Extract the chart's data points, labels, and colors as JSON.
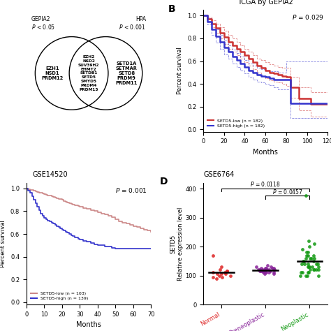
{
  "panel_A": {
    "left_label": "GEPIA2\nP < 0.05",
    "right_label": "HPA\nP < 0.001",
    "left_only": [
      "EZH1",
      "NSD1",
      "PRDM12"
    ],
    "intersection": [
      "EZH2",
      "NSD2",
      "SUV39H2",
      "EHMT2",
      "SETDB1",
      "SETD5",
      "SMYD5",
      "PRDM4",
      "PRDM15"
    ],
    "right_only": [
      "SETD1A",
      "SETMAR",
      "SETD8",
      "PRDM9",
      "PRDM11"
    ]
  },
  "panel_B": {
    "title": "TCGA by GEPIA2",
    "pvalue": "P = 0.029",
    "xlabel": "Months",
    "ylabel": "Percent survival",
    "xlim": [
      0,
      120
    ],
    "ylim": [
      -0.02,
      1.05
    ],
    "xticks": [
      0,
      20,
      40,
      60,
      80,
      100,
      120
    ],
    "yticks": [
      0.0,
      0.2,
      0.4,
      0.6,
      0.8,
      1.0
    ],
    "low_label": "SETD5-low (n = 182)",
    "high_label": "SETD5-high (n = 182)",
    "low_color": "#cc3333",
    "high_color": "#3333cc",
    "low_x": [
      0,
      4,
      8,
      12,
      16,
      20,
      24,
      28,
      32,
      36,
      40,
      44,
      48,
      52,
      56,
      60,
      64,
      68,
      72,
      76,
      80,
      84,
      88,
      92,
      96,
      100,
      104,
      108,
      112,
      116,
      120
    ],
    "low_y": [
      1.0,
      0.97,
      0.93,
      0.89,
      0.85,
      0.81,
      0.77,
      0.74,
      0.71,
      0.68,
      0.65,
      0.62,
      0.59,
      0.56,
      0.54,
      0.52,
      0.5,
      0.49,
      0.48,
      0.47,
      0.46,
      0.37,
      0.37,
      0.27,
      0.27,
      0.27,
      0.22,
      0.22,
      0.22,
      0.22,
      0.22
    ],
    "high_x": [
      0,
      4,
      8,
      12,
      16,
      20,
      24,
      28,
      32,
      36,
      40,
      44,
      48,
      52,
      56,
      60,
      64,
      68,
      72,
      76,
      80,
      84,
      88,
      92,
      96,
      100,
      104,
      108,
      112,
      116,
      120
    ],
    "high_y": [
      1.0,
      0.95,
      0.88,
      0.82,
      0.77,
      0.72,
      0.68,
      0.64,
      0.61,
      0.58,
      0.55,
      0.52,
      0.5,
      0.48,
      0.47,
      0.46,
      0.45,
      0.44,
      0.44,
      0.44,
      0.44,
      0.23,
      0.23,
      0.23,
      0.23,
      0.23,
      0.23,
      0.23,
      0.23,
      0.23,
      0.23
    ],
    "low_ci_upper_x": [
      0,
      4,
      8,
      12,
      16,
      20,
      24,
      28,
      32,
      36,
      40,
      44,
      48,
      52,
      56,
      60,
      64,
      68,
      72,
      76,
      80,
      84,
      88,
      92,
      96,
      100,
      104,
      108,
      112,
      116,
      120
    ],
    "low_ci_upper_y": [
      1.0,
      0.99,
      0.96,
      0.93,
      0.9,
      0.87,
      0.83,
      0.8,
      0.77,
      0.74,
      0.71,
      0.68,
      0.65,
      0.62,
      0.61,
      0.59,
      0.57,
      0.56,
      0.55,
      0.54,
      0.54,
      0.46,
      0.46,
      0.37,
      0.37,
      0.37,
      0.33,
      0.33,
      0.33,
      0.33,
      0.33
    ],
    "low_ci_lower_y": [
      1.0,
      0.95,
      0.9,
      0.85,
      0.8,
      0.75,
      0.71,
      0.68,
      0.65,
      0.62,
      0.59,
      0.56,
      0.53,
      0.5,
      0.47,
      0.45,
      0.43,
      0.42,
      0.41,
      0.4,
      0.38,
      0.28,
      0.28,
      0.17,
      0.17,
      0.17,
      0.11,
      0.11,
      0.11,
      0.11,
      0.11
    ],
    "high_ci_upper_x": [
      0,
      4,
      8,
      12,
      16,
      20,
      24,
      28,
      32,
      36,
      40,
      44,
      48,
      52,
      56,
      60,
      64,
      68,
      72,
      76,
      80,
      84,
      88,
      92,
      96,
      100,
      104,
      108,
      112,
      116,
      120
    ],
    "high_ci_upper_y": [
      1.0,
      0.98,
      0.93,
      0.88,
      0.83,
      0.78,
      0.74,
      0.7,
      0.67,
      0.64,
      0.61,
      0.58,
      0.56,
      0.54,
      0.53,
      0.52,
      0.51,
      0.51,
      0.5,
      0.5,
      0.6,
      0.6,
      0.6,
      0.6,
      0.6,
      0.6,
      0.6,
      0.6,
      0.6,
      0.6,
      0.6
    ],
    "high_ci_lower_y": [
      1.0,
      0.92,
      0.83,
      0.76,
      0.71,
      0.66,
      0.62,
      0.58,
      0.55,
      0.52,
      0.49,
      0.46,
      0.44,
      0.42,
      0.41,
      0.4,
      0.39,
      0.37,
      0.35,
      0.35,
      0.35,
      0.1,
      0.1,
      0.1,
      0.1,
      0.1,
      0.1,
      0.1,
      0.1,
      0.1,
      0.1
    ]
  },
  "panel_C": {
    "title": "GSE14520",
    "pvalue": "P = 0.001",
    "xlabel": "Months",
    "ylabel": "Percent survival",
    "xlim": [
      0,
      70
    ],
    "ylim": [
      -0.02,
      1.05
    ],
    "xticks": [
      0,
      10,
      20,
      30,
      40,
      50,
      60,
      70
    ],
    "yticks": [
      0.0,
      0.2,
      0.4,
      0.6,
      0.8,
      1.0
    ],
    "low_label": "SETD5-low (n = 103)",
    "high_label": "SETD5-high (n = 139)",
    "low_color": "#cc8888",
    "high_color": "#3333cc",
    "low_x": [
      0,
      1,
      2,
      3,
      4,
      5,
      6,
      7,
      8,
      9,
      10,
      11,
      12,
      13,
      14,
      15,
      16,
      17,
      18,
      19,
      20,
      21,
      22,
      23,
      24,
      25,
      26,
      27,
      28,
      29,
      30,
      32,
      34,
      36,
      38,
      40,
      42,
      44,
      46,
      48,
      50,
      52,
      54,
      56,
      58,
      60,
      62,
      64,
      66,
      68,
      70
    ],
    "low_y": [
      1.0,
      0.995,
      0.99,
      0.985,
      0.98,
      0.975,
      0.97,
      0.965,
      0.96,
      0.955,
      0.95,
      0.945,
      0.94,
      0.935,
      0.93,
      0.925,
      0.92,
      0.915,
      0.91,
      0.905,
      0.9,
      0.89,
      0.88,
      0.875,
      0.87,
      0.865,
      0.86,
      0.855,
      0.85,
      0.845,
      0.84,
      0.83,
      0.82,
      0.81,
      0.8,
      0.79,
      0.78,
      0.77,
      0.76,
      0.75,
      0.73,
      0.71,
      0.7,
      0.69,
      0.68,
      0.67,
      0.66,
      0.65,
      0.64,
      0.63,
      0.62
    ],
    "high_x": [
      0,
      1,
      2,
      3,
      4,
      5,
      6,
      7,
      8,
      9,
      10,
      11,
      12,
      13,
      14,
      15,
      16,
      17,
      18,
      19,
      20,
      21,
      22,
      23,
      24,
      25,
      26,
      27,
      28,
      29,
      30,
      32,
      34,
      36,
      38,
      40,
      42,
      44,
      46,
      48,
      50,
      52,
      54,
      56,
      58,
      60,
      62,
      64,
      66,
      68,
      70
    ],
    "high_y": [
      1.0,
      0.98,
      0.96,
      0.93,
      0.9,
      0.87,
      0.84,
      0.81,
      0.78,
      0.76,
      0.74,
      0.73,
      0.72,
      0.71,
      0.7,
      0.69,
      0.68,
      0.67,
      0.66,
      0.65,
      0.64,
      0.63,
      0.62,
      0.61,
      0.6,
      0.59,
      0.58,
      0.57,
      0.57,
      0.56,
      0.55,
      0.54,
      0.53,
      0.52,
      0.51,
      0.5,
      0.5,
      0.49,
      0.49,
      0.48,
      0.47,
      0.47,
      0.47,
      0.47,
      0.47,
      0.47,
      0.47,
      0.47,
      0.47,
      0.47,
      0.47
    ]
  },
  "panel_D": {
    "title": "GSE6764",
    "ylabel1": "SETD5",
    "ylabel2": "Relative expression level",
    "p1": "P = 0.0118",
    "p2": "P = 0.0457",
    "categories": [
      "Normal",
      "Preneoplastic",
      "Neoplastic"
    ],
    "cat_colors": [
      "#dd2222",
      "#882299",
      "#119911"
    ],
    "normal_vals": [
      110,
      115,
      120,
      105,
      100,
      95,
      130,
      170,
      90,
      105,
      110,
      115,
      100,
      95,
      105
    ],
    "pre_vals": [
      110,
      115,
      120,
      125,
      130,
      135,
      120,
      115,
      110,
      105,
      120,
      125,
      115,
      110,
      105,
      120,
      125,
      110,
      115,
      120,
      125,
      130,
      115,
      120,
      125,
      110,
      115,
      120
    ],
    "neo_vals": [
      100,
      110,
      120,
      130,
      140,
      150,
      160,
      170,
      180,
      130,
      120,
      110,
      100,
      140,
      150,
      160,
      170,
      130,
      120,
      110,
      100,
      160,
      140,
      120,
      100,
      140,
      130,
      120,
      110,
      375,
      220,
      210,
      200,
      190,
      180,
      170,
      160,
      150,
      140,
      130
    ],
    "ylim": [
      0,
      420
    ],
    "yticks": [
      0,
      100,
      200,
      300,
      400
    ]
  },
  "bg_color": "#ffffff"
}
